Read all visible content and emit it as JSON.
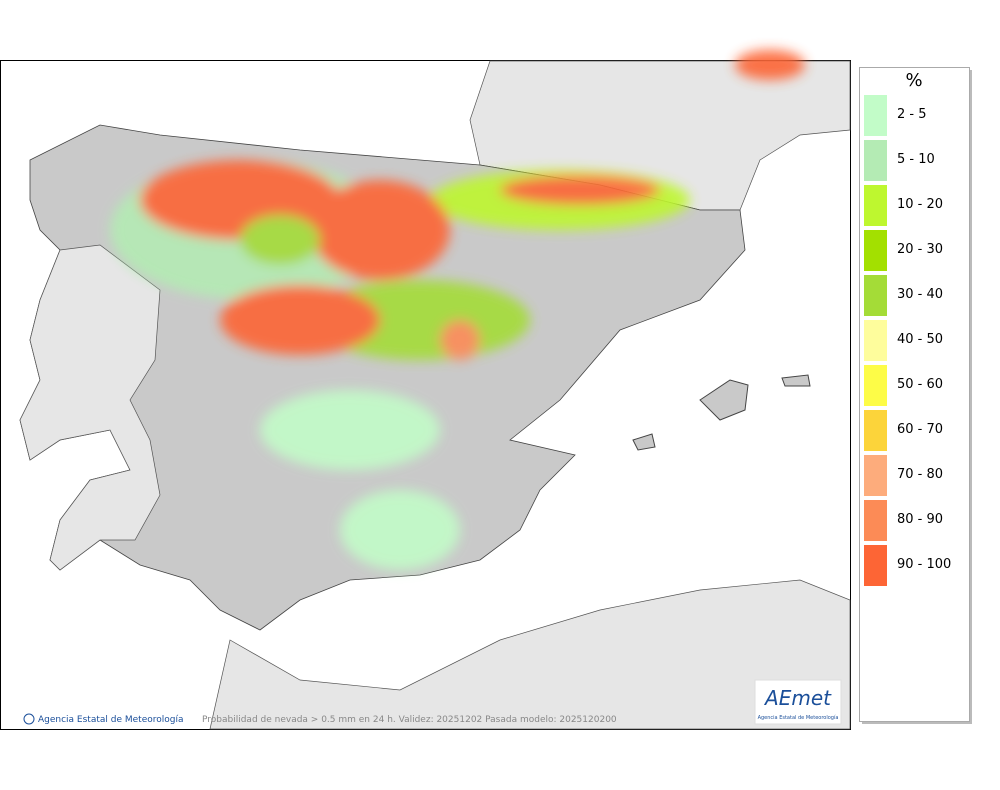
{
  "legend": {
    "title": "%",
    "items": [
      {
        "label": "2 - 5",
        "color": "#c2fcc8"
      },
      {
        "label": "5 - 10",
        "color": "#b4ebb4"
      },
      {
        "label": "10 - 20",
        "color": "#bef72f"
      },
      {
        "label": "20 - 30",
        "color": "#a3e000"
      },
      {
        "label": "30 - 40",
        "color": "#a4dc37"
      },
      {
        "label": "40 - 50",
        "color": "#fefd9c"
      },
      {
        "label": "50 - 60",
        "color": "#fdfc47"
      },
      {
        "label": "60 - 70",
        "color": "#fcd43a"
      },
      {
        "label": "70 - 80",
        "color": "#fdac7c"
      },
      {
        "label": "80 - 90",
        "color": "#fc8b56"
      },
      {
        "label": "90 - 100",
        "color": "#fd6535"
      }
    ]
  },
  "footer": {
    "credit": "Agencia Estatal de Meteorología",
    "caption": "Probabilidad de nevada > 0.5 mm en 24 h. Validez: 20251202 Pasada modelo: 2025120200"
  },
  "logo": {
    "name": "AEmet",
    "subtitle": "Agencia Estatal de Meteorología"
  }
}
